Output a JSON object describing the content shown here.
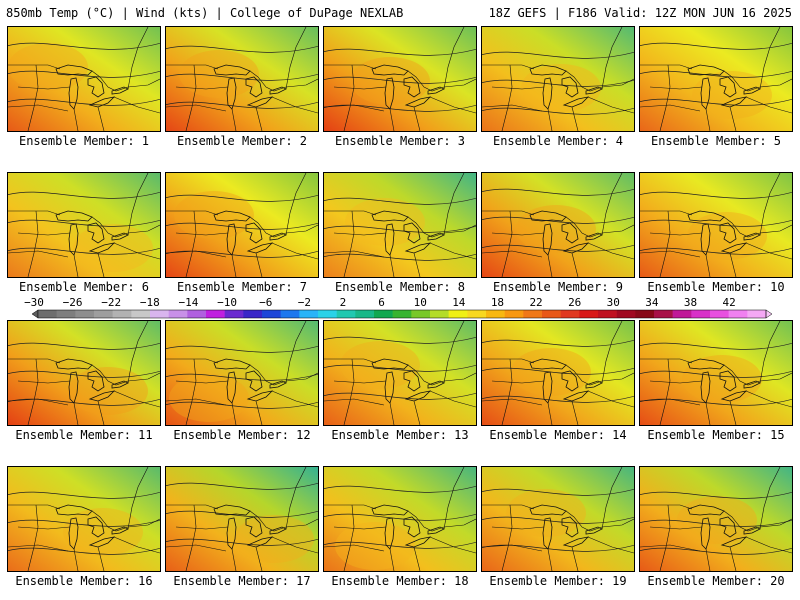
{
  "header": {
    "left": "850mb Temp (°C) | Wind (kts) | College of DuPage NEXLAB",
    "right": "18Z GEFS | F186 Valid: 12Z MON JUN 16 2025"
  },
  "panels": [
    {
      "label": "Ensemble Member: 1",
      "warm": 0.55,
      "cool": 0.2
    },
    {
      "label": "Ensemble Member: 2",
      "warm": 0.7,
      "cool": 0.3
    },
    {
      "label": "Ensemble Member: 3",
      "warm": 0.75,
      "cool": 0.25
    },
    {
      "label": "Ensemble Member: 4",
      "warm": 0.35,
      "cool": 0.45
    },
    {
      "label": "Ensemble Member: 5",
      "warm": 0.45,
      "cool": 0.05
    },
    {
      "label": "Ensemble Member: 6",
      "warm": 0.3,
      "cool": 0.4
    },
    {
      "label": "Ensemble Member: 7",
      "warm": 0.7,
      "cool": 0.05
    },
    {
      "label": "Ensemble Member: 8",
      "warm": 0.25,
      "cool": 0.6
    },
    {
      "label": "Ensemble Member: 9",
      "warm": 0.7,
      "cool": 0.35
    },
    {
      "label": "Ensemble Member: 10",
      "warm": 0.55,
      "cool": 0.1
    },
    {
      "label": "Ensemble Member: 11",
      "warm": 0.75,
      "cool": 0.35
    },
    {
      "label": "Ensemble Member: 12",
      "warm": 0.6,
      "cool": 0.45
    },
    {
      "label": "Ensemble Member: 13",
      "warm": 0.5,
      "cool": 0.35
    },
    {
      "label": "Ensemble Member: 14",
      "warm": 0.65,
      "cool": 0.15
    },
    {
      "label": "Ensemble Member: 15",
      "warm": 0.65,
      "cool": 0.2
    },
    {
      "label": "Ensemble Member: 16",
      "warm": 0.4,
      "cool": 0.4
    },
    {
      "label": "Ensemble Member: 17",
      "warm": 0.5,
      "cool": 0.7
    },
    {
      "label": "Ensemble Member: 18",
      "warm": 0.35,
      "cool": 0.55
    },
    {
      "label": "Ensemble Member: 19",
      "warm": 0.45,
      "cool": 0.55
    },
    {
      "label": "Ensemble Member: 20",
      "warm": 0.55,
      "cool": 0.6
    }
  ],
  "colorbar": {
    "labels": [
      "−30",
      "−26",
      "−22",
      "−18",
      "−14",
      "−10",
      "−6",
      "−2",
      "2",
      "6",
      "10",
      "14",
      "18",
      "22",
      "26",
      "30",
      "34",
      "38",
      "42"
    ],
    "colors": [
      "#6e6e6e",
      "#7e7e7e",
      "#8e8e8e",
      "#9e9e9e",
      "#b2b2b2",
      "#c8c8c8",
      "#d9b5ee",
      "#c890e8",
      "#b060e0",
      "#c020e0",
      "#6a2ad0",
      "#3a26c8",
      "#1e46d8",
      "#1e78ee",
      "#28b4f8",
      "#2ad2e8",
      "#20c8b0",
      "#18b888",
      "#10a850",
      "#38b430",
      "#78c828",
      "#b4dc28",
      "#f0f014",
      "#f8d820",
      "#f8b810",
      "#f89810",
      "#f07818",
      "#e85818",
      "#e03820",
      "#d81818",
      "#c01020",
      "#a00820",
      "#880818",
      "#a81048",
      "#c01898",
      "#d830c8",
      "#e850e0",
      "#f080f0",
      "#f4a8f4"
    ]
  }
}
